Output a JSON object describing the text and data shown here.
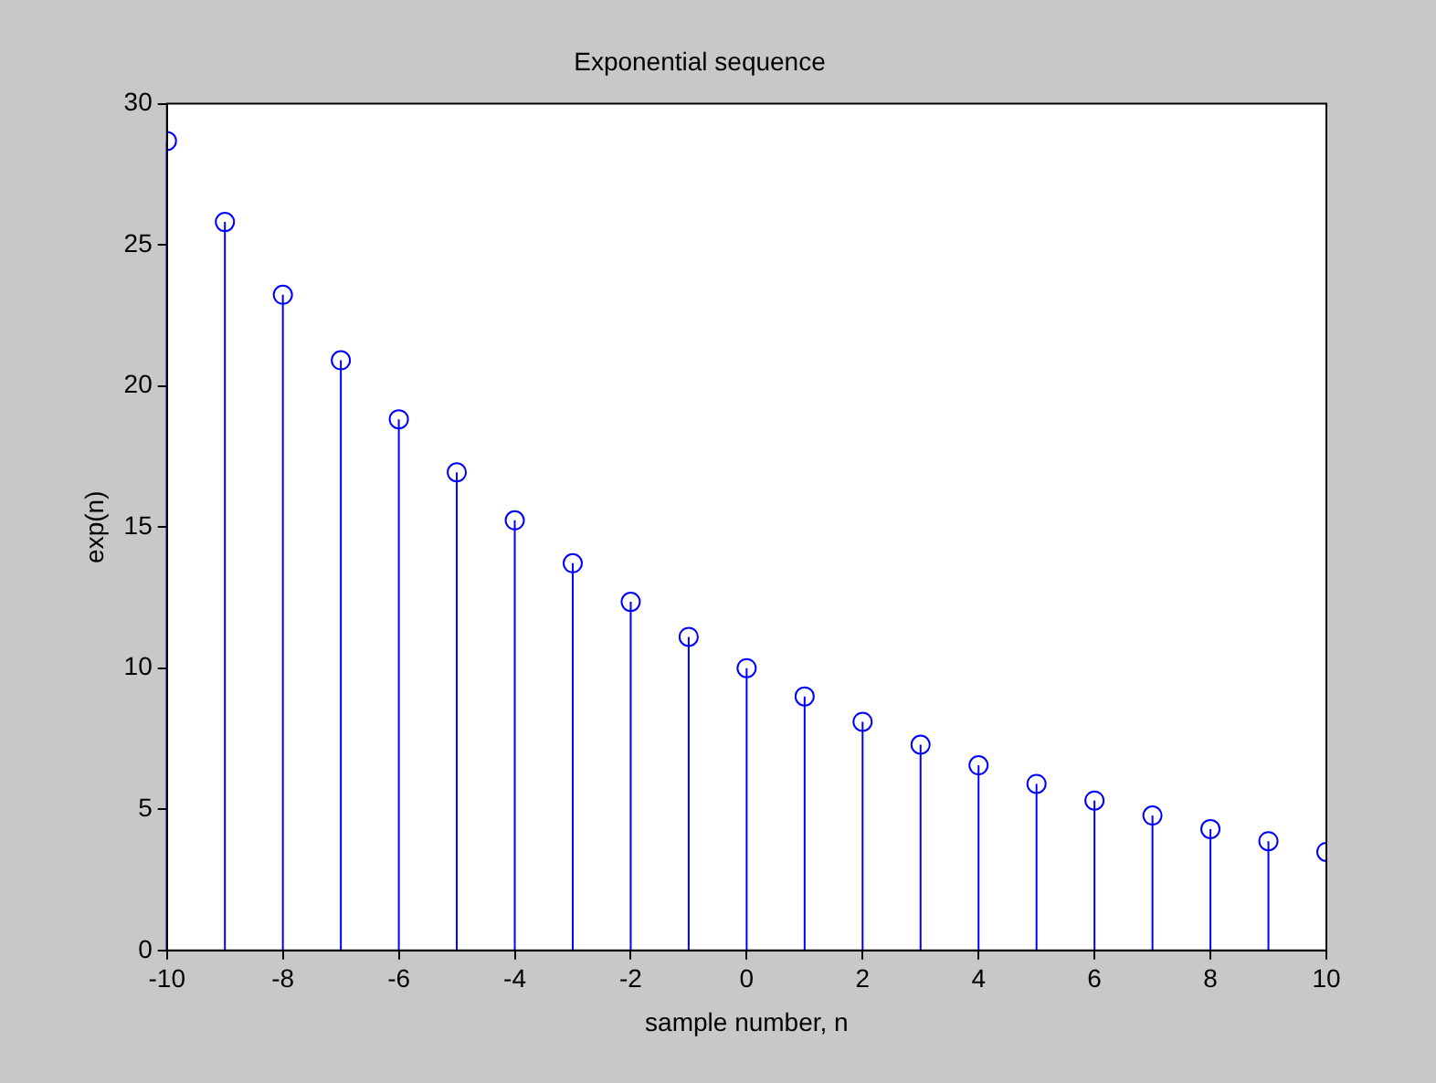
{
  "chart_data": {
    "type": "lollipop",
    "title": "Exponential sequence",
    "xlabel": "sample number, n",
    "ylabel": "exp(n)",
    "x": [
      -10,
      -9,
      -8,
      -7,
      -6,
      -5,
      -4,
      -3,
      -2,
      -1,
      0,
      1,
      2,
      3,
      4,
      5,
      6,
      7,
      8,
      9,
      10
    ],
    "values": [
      28.68,
      25.81,
      23.23,
      20.91,
      18.82,
      16.94,
      15.24,
      13.72,
      12.35,
      11.11,
      10,
      9,
      8.1,
      7.29,
      6.56,
      5.9,
      5.31,
      4.78,
      4.3,
      3.87,
      3.49
    ],
    "color": "#0000ff",
    "marker": "circle",
    "grid": false,
    "xlim": [
      -10,
      10
    ],
    "xticks": [
      -10,
      -8,
      -6,
      -4,
      -2,
      0,
      2,
      4,
      6,
      8,
      10
    ],
    "ylim": [
      0,
      30
    ],
    "yticks": [
      0,
      5,
      10,
      15,
      20,
      25,
      30
    ]
  }
}
